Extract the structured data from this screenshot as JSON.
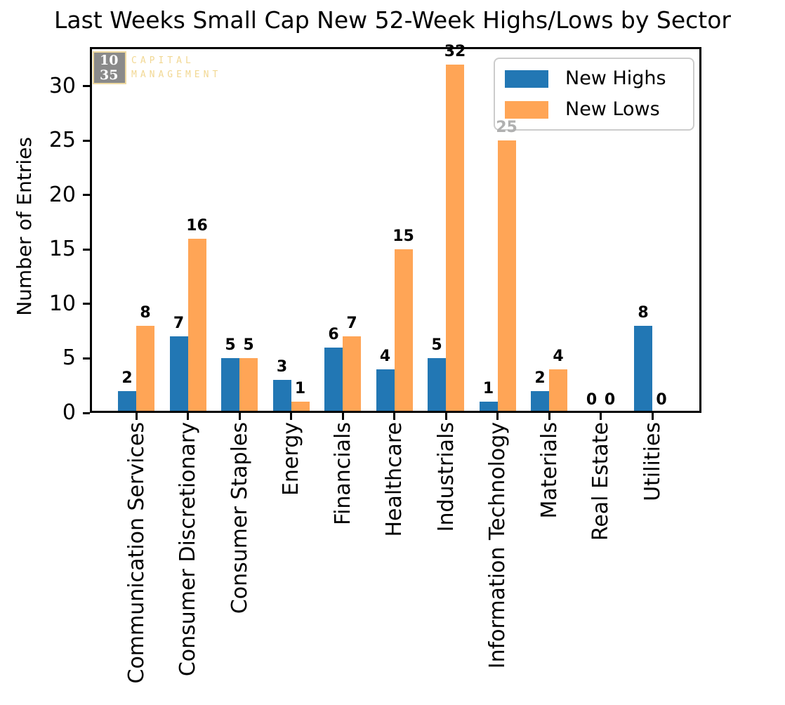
{
  "figure": {
    "background": "#ffffff",
    "axis_color": "#000000"
  },
  "logo": {
    "top_number": "10",
    "bottom_number": "35",
    "word1": "CAPITAL",
    "word2": "MANAGEMENT",
    "box_color": "#8a8a8a",
    "number_color": "#ffffff",
    "accent_color": "#f2d894"
  },
  "legend": {
    "items": [
      {
        "label": "New Highs",
        "color": "#2277b4"
      },
      {
        "label": "New Lows",
        "color": "#ffa556"
      }
    ]
  },
  "chart_data": {
    "type": "bar",
    "title": "Last Weeks Small Cap New 52-Week Highs/Lows by Sector",
    "xlabel": "",
    "ylabel": "Number of Entries",
    "categories": [
      "Communication Services",
      "Consumer Discretionary",
      "Consumer Staples",
      "Energy",
      "Financials",
      "Healthcare",
      "Industrials",
      "Information Technology",
      "Materials",
      "Real Estate",
      "Utilities"
    ],
    "series": [
      {
        "name": "New Highs",
        "color": "#2277b4",
        "values": [
          2,
          7,
          5,
          3,
          6,
          4,
          5,
          1,
          2,
          0,
          8
        ]
      },
      {
        "name": "New Lows",
        "color": "#ffa556",
        "values": [
          8,
          16,
          5,
          1,
          7,
          15,
          32,
          25,
          4,
          0,
          0
        ]
      }
    ],
    "bar_value_labels": true,
    "yticks": [
      0,
      5,
      10,
      15,
      20,
      25,
      30
    ],
    "ylim": [
      0,
      33.6
    ],
    "grid": false,
    "legend_position": "upper right",
    "occluded_bar_label": {
      "series": "New Lows",
      "category": "Information Technology",
      "value": 25,
      "display_color": "#b0b0b0",
      "note": "bar label shown grayed behind semi-transparent legend box"
    }
  }
}
